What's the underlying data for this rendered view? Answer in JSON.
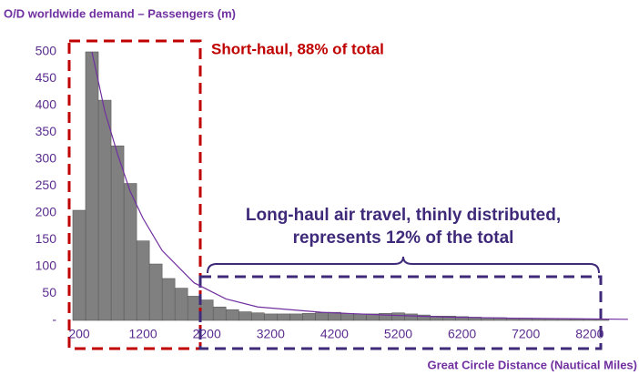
{
  "chart_data": {
    "type": "histogram",
    "title": "O/D worldwide demand – Passengers (m)",
    "x_label": "Great Circle Distance (Nautical Miles)",
    "bins": [
      100,
      300,
      500,
      700,
      900,
      1100,
      1300,
      1500,
      1700,
      1900,
      2100,
      2300,
      2500,
      2700,
      2900,
      3100,
      3300,
      3500,
      3700,
      3900,
      4100,
      4300,
      4500,
      4700,
      4900,
      5100,
      5300,
      5500,
      5700,
      5900,
      6100,
      6300,
      6500,
      6700,
      6900,
      7100,
      7300,
      7500,
      7700,
      7900,
      8100,
      8300,
      8500
    ],
    "values": [
      205,
      500,
      410,
      325,
      255,
      148,
      105,
      78,
      60,
      45,
      38,
      25,
      20,
      16,
      14,
      12,
      12,
      12,
      13,
      14,
      15,
      13,
      12,
      12,
      13,
      14,
      12,
      10,
      8,
      8,
      7,
      6,
      5,
      5,
      4,
      4,
      3,
      3,
      3,
      2,
      2,
      2
    ],
    "color": "#808080",
    "curve": {
      "color": "#7030a0",
      "x": [
        400,
        600,
        800,
        1000,
        1200,
        1500,
        2000,
        2500,
        3000,
        4000,
        5000,
        6000,
        7000,
        8000,
        8800
      ],
      "values": [
        500,
        390,
        310,
        240,
        190,
        130,
        70,
        40,
        25,
        15,
        10,
        6,
        4,
        3,
        2
      ]
    },
    "xlim": [
      0,
      8800
    ],
    "ylim": [
      0,
      500
    ],
    "xticks": [
      200,
      1200,
      2200,
      3200,
      4200,
      5200,
      6200,
      7200,
      8200
    ],
    "yticks": [
      {
        "value": 0,
        "label": "-"
      },
      50,
      100,
      150,
      200,
      250,
      300,
      350,
      400,
      450,
      500
    ],
    "annotations": [
      "Short-haul, 88% of total",
      "Long-haul air travel, thinly distributed,",
      "represents 12% of the total"
    ]
  }
}
